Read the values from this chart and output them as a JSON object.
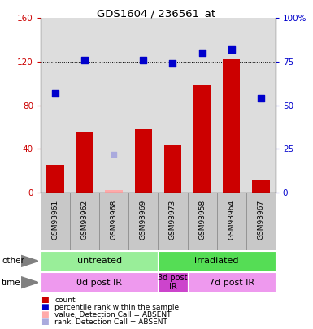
{
  "title": "GDS1604 / 236561_at",
  "samples": [
    "GSM93961",
    "GSM93962",
    "GSM93968",
    "GSM93969",
    "GSM93973",
    "GSM93958",
    "GSM93964",
    "GSM93967"
  ],
  "counts": [
    25,
    55,
    2,
    58,
    43,
    98,
    122,
    12
  ],
  "counts_absent_idx": [
    2
  ],
  "counts_absent_val": [
    2
  ],
  "percentile_ranks": [
    57,
    76,
    null,
    76,
    74,
    80,
    82,
    54
  ],
  "percentile_ranks_absent": [
    [
      2,
      22
    ]
  ],
  "ylim_left": [
    0,
    160
  ],
  "ylim_right": [
    0,
    100
  ],
  "yticks_left": [
    0,
    40,
    80,
    120,
    160
  ],
  "yticks_right": [
    0,
    25,
    50,
    75,
    100
  ],
  "ytick_labels_left": [
    "0",
    "40",
    "80",
    "120",
    "160"
  ],
  "ytick_labels_right": [
    "0",
    "25",
    "50",
    "75",
    "100%"
  ],
  "bar_color": "#cc0000",
  "bar_absent_color": "#ffaaaa",
  "dot_color": "#0000cc",
  "dot_absent_color": "#aaaadd",
  "group_other": [
    {
      "label": "untreated",
      "start": 0,
      "end": 4,
      "color": "#99ee99"
    },
    {
      "label": "irradiated",
      "start": 4,
      "end": 8,
      "color": "#55dd55"
    }
  ],
  "group_time": [
    {
      "label": "0d post IR",
      "start": 0,
      "end": 4,
      "color": "#ee99ee"
    },
    {
      "label": "3d post\nIR",
      "start": 4,
      "end": 5,
      "color": "#cc44cc"
    },
    {
      "label": "7d post IR",
      "start": 5,
      "end": 8,
      "color": "#ee99ee"
    }
  ],
  "legend_items": [
    {
      "label": "count",
      "color": "#cc0000"
    },
    {
      "label": "percentile rank within the sample",
      "color": "#0000cc"
    },
    {
      "label": "value, Detection Call = ABSENT",
      "color": "#ffaaaa"
    },
    {
      "label": "rank, Detection Call = ABSENT",
      "color": "#aaaadd"
    }
  ],
  "grid_color": "#555555",
  "tick_label_bg": "#c8c8c8",
  "white": "#ffffff"
}
